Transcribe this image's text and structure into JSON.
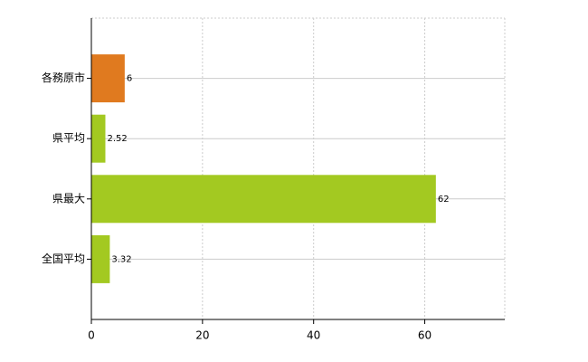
{
  "chart_data": {
    "type": "bar",
    "orientation": "horizontal",
    "categories": [
      "各務原市",
      "県平均",
      "県最大",
      "全国平均"
    ],
    "values": [
      6,
      2.52,
      62,
      3.32
    ],
    "colors": [
      "#e07a1f",
      "#a3c921",
      "#a3c921",
      "#a3c921"
    ],
    "xlim": [
      0,
      74.4
    ],
    "xticks": [
      0,
      20,
      40,
      60
    ],
    "grid": true
  }
}
